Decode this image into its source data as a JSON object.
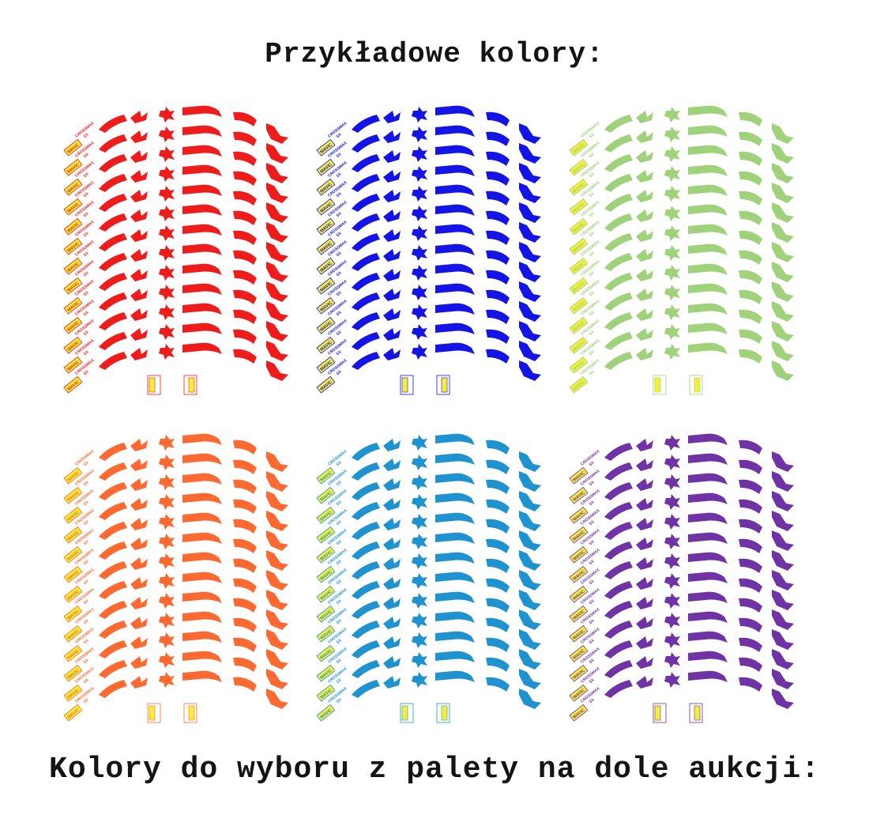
{
  "page": {
    "title": "Przykładowe kolory:",
    "footer": "Kolory do wyboru z palety na dole aukcji:"
  },
  "decal": {
    "brand": "MAVIC",
    "model": "CROSSMAX",
    "model_sub": "SX"
  },
  "swatches": [
    {
      "name": "red",
      "color": "#ef1c1c"
    },
    {
      "name": "blue",
      "color": "#1414e6"
    },
    {
      "name": "light-green",
      "color": "#9fd27a"
    },
    {
      "name": "orange",
      "color": "#fc6a32"
    },
    {
      "name": "sky-blue",
      "color": "#1f93d0"
    },
    {
      "name": "purple",
      "color": "#6f33a6"
    }
  ],
  "colors": {
    "logo_yellow": "#f5ef3a"
  }
}
